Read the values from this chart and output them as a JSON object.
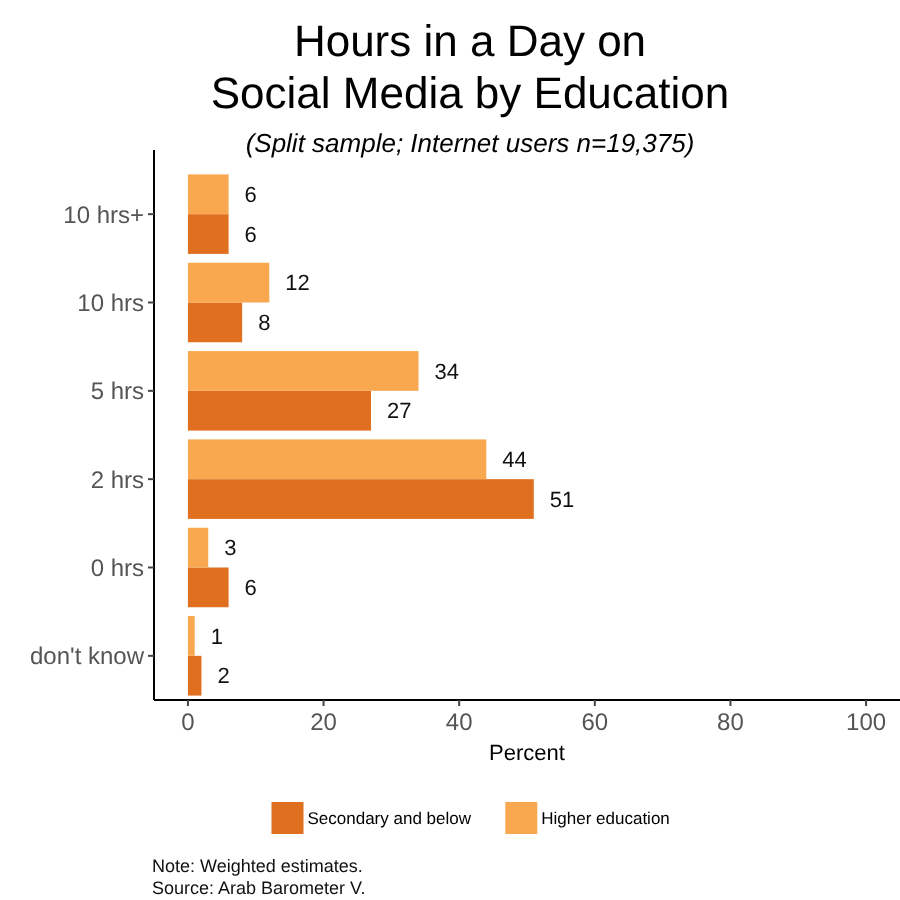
{
  "chart_data": {
    "type": "bar",
    "orientation": "horizontal",
    "title": "Hours in a Day on\nSocial Media by Education",
    "subtitle": "(Split sample; Internet users n=19,375)",
    "xlabel": "Percent",
    "categories": [
      "10 hrs+",
      "10 hrs",
      "5 hrs",
      "2 hrs",
      "0 hrs",
      "don't know"
    ],
    "series": [
      {
        "name": "Secondary and below",
        "color": "#e07020",
        "values": [
          6,
          8,
          27,
          51,
          6,
          2
        ]
      },
      {
        "name": "Higher education",
        "color": "#f9a84f",
        "values": [
          6,
          12,
          34,
          44,
          3,
          1
        ]
      }
    ],
    "xlim": [
      -5,
      105
    ],
    "xticks": [
      0,
      20,
      40,
      60,
      80,
      100
    ],
    "data_labels": true,
    "legend": "bottom",
    "grid": false,
    "annotations": [
      "Note: Weighted estimates.",
      "Source: Arab Barometer V."
    ]
  }
}
